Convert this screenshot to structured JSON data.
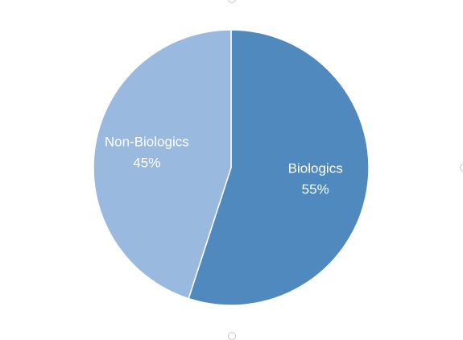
{
  "chart_data": {
    "type": "pie",
    "title": "",
    "slices": [
      {
        "label": "Biologics",
        "value": 55,
        "percent_label": "55%",
        "color": "#4f89bd"
      },
      {
        "label": "Non-Biologics",
        "value": 45,
        "percent_label": "45%",
        "color": "#9ab9df"
      }
    ],
    "start_angle": "12 o'clock",
    "direction": "clockwise",
    "legend": "none",
    "slice_border_color": "#ffffff"
  }
}
